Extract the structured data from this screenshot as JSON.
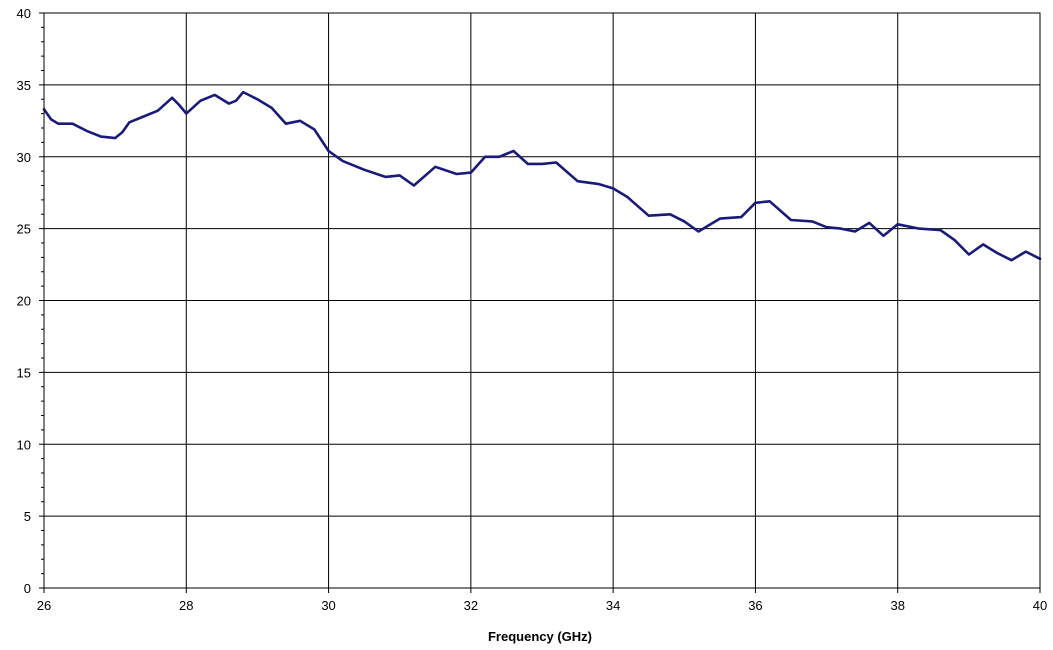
{
  "chart_data": {
    "type": "line",
    "title": "",
    "xlabel": "Frequency (GHz)",
    "ylabel": "",
    "xlim": [
      26,
      40
    ],
    "ylim": [
      0,
      40
    ],
    "x_ticks": [
      26,
      28,
      30,
      32,
      34,
      36,
      38,
      40
    ],
    "y_ticks": [
      0,
      5,
      10,
      15,
      20,
      25,
      30,
      35,
      40
    ],
    "grid": true,
    "legend": "none",
    "line_color": "#1a1a7a",
    "series": [
      {
        "x": [
          26.0,
          26.1,
          26.2,
          26.4,
          26.6,
          26.8,
          27.0,
          27.1,
          27.2,
          27.4,
          27.6,
          27.8,
          27.9,
          28.0,
          28.2,
          28.4,
          28.6,
          28.7,
          28.8,
          29.0,
          29.2,
          29.4,
          29.6,
          29.8,
          30.0,
          30.2,
          30.5,
          30.8,
          31.0,
          31.2,
          31.5,
          31.8,
          32.0,
          32.2,
          32.4,
          32.6,
          32.8,
          33.0,
          33.2,
          33.5,
          33.8,
          34.0,
          34.2,
          34.5,
          34.8,
          35.0,
          35.2,
          35.5,
          35.8,
          36.0,
          36.2,
          36.5,
          36.8,
          37.0,
          37.2,
          37.4,
          37.6,
          37.8,
          38.0,
          38.3,
          38.6,
          38.8,
          39.0,
          39.2,
          39.4,
          39.6,
          39.8,
          40.0
        ],
        "y": [
          33.3,
          32.6,
          32.3,
          32.3,
          31.8,
          31.4,
          31.3,
          31.7,
          32.4,
          32.8,
          33.2,
          34.1,
          33.6,
          33.0,
          33.9,
          34.3,
          33.7,
          33.9,
          34.5,
          34.0,
          33.4,
          32.3,
          32.5,
          31.9,
          30.4,
          29.7,
          29.1,
          28.6,
          28.7,
          28.0,
          29.3,
          28.8,
          28.9,
          30.0,
          30.0,
          30.4,
          29.5,
          29.5,
          29.6,
          28.3,
          28.1,
          27.8,
          27.2,
          25.9,
          26.0,
          25.5,
          24.8,
          25.7,
          25.8,
          26.8,
          26.9,
          25.6,
          25.5,
          25.1,
          25.0,
          24.8,
          25.4,
          24.5,
          25.3,
          25.0,
          24.9,
          24.2,
          23.2,
          23.9,
          23.3,
          22.8,
          23.4,
          22.9
        ]
      }
    ]
  }
}
